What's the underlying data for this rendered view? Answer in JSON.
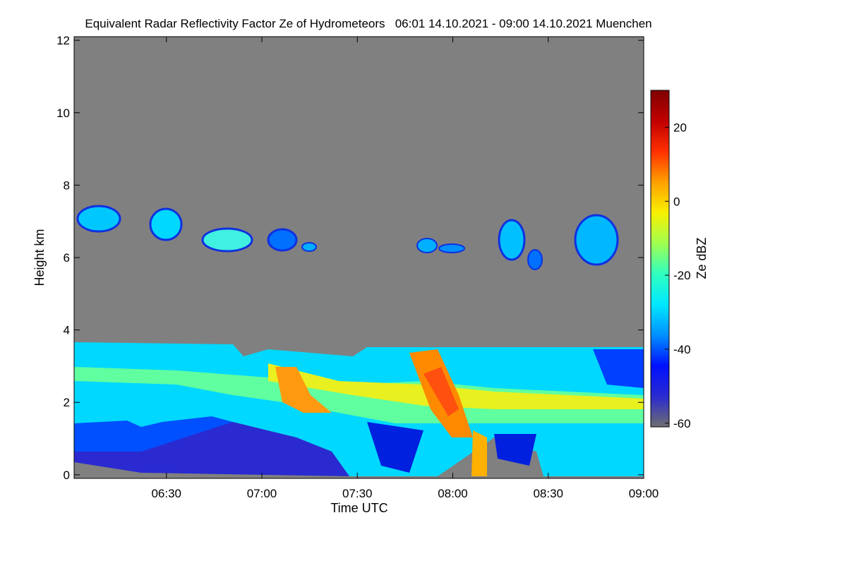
{
  "chart_data": {
    "type": "heatmap",
    "title": "Equivalent Radar Reflectivity Factor Ze of Hydrometeors   06:01 14.10.2021 - 09:00 14.10.2021 Muenchen",
    "x_label": "Time UTC",
    "y_label": "Height km",
    "colorbar_label": "Ze dBZ",
    "xlim": [
      "06:01",
      "09:00"
    ],
    "xticks": [
      "06:30",
      "07:00",
      "07:30",
      "08:00",
      "08:30",
      "09:00"
    ],
    "ylim": [
      -0.1,
      12.1
    ],
    "yticks": [
      0,
      2,
      4,
      6,
      8,
      10,
      12
    ],
    "clim": [
      -61,
      30
    ],
    "cticks": [
      -60,
      -40,
      -20,
      0,
      20
    ],
    "colormap": [
      "#6e6e70",
      "#2a2ad0",
      "#0010ff",
      "#0090ff",
      "#00e8ff",
      "#30ffc0",
      "#a0ff50",
      "#f8f000",
      "#ffa000",
      "#ff3000",
      "#c00000",
      "#800000"
    ],
    "background": "#808080"
  }
}
